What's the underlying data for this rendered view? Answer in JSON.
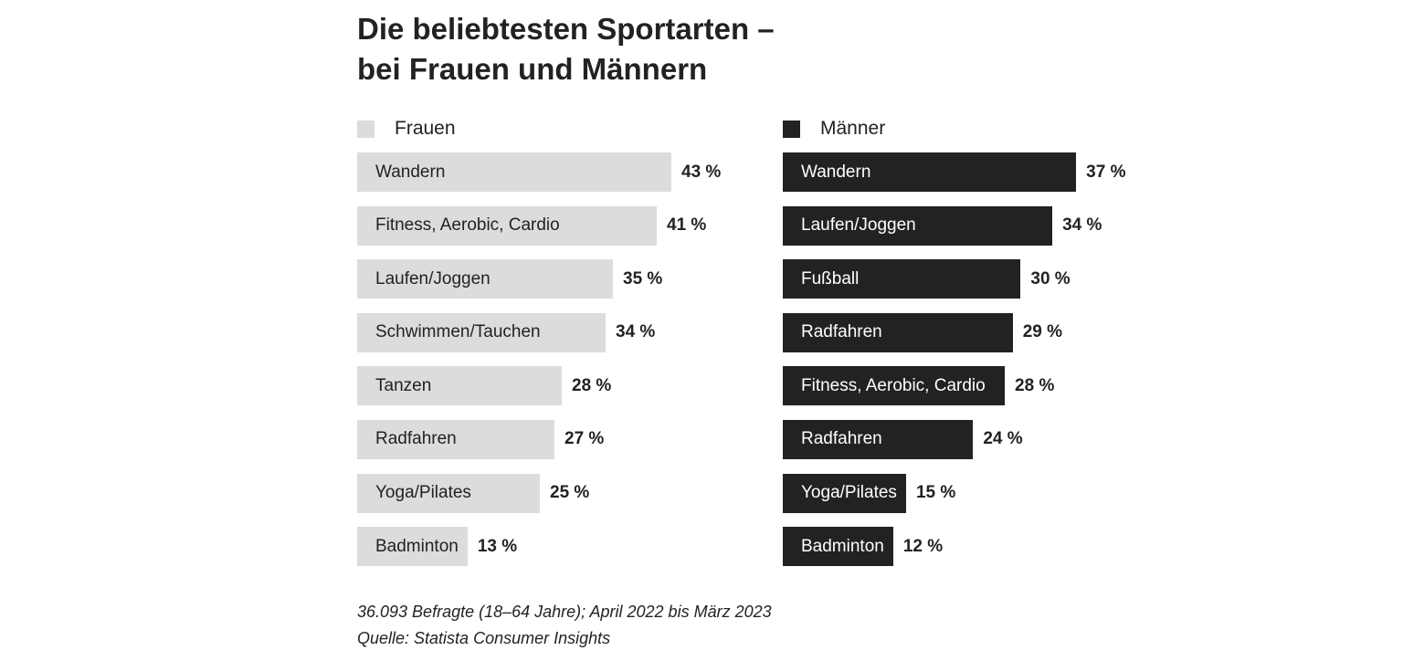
{
  "chart_data": {
    "type": "bar",
    "title": "Die beliebtesten Sportarten –",
    "subtitle": "bei Frauen und Männern",
    "unit": "%",
    "series": [
      {
        "name": "Frauen",
        "color": "#dcdcdc",
        "text_color": "#222222",
        "categories": [
          "Wandern",
          "Fitness, Aerobic, Cardio",
          "Laufen/Joggen",
          "Schwimmen/Tauchen",
          "Tanzen",
          "Radfahren",
          "Yoga/Pilates",
          "Badminton"
        ],
        "values": [
          43,
          41,
          35,
          34,
          28,
          27,
          25,
          13
        ],
        "labels": [
          "43 %",
          "41 %",
          "35 %",
          "34 %",
          "28 %",
          "27 %",
          "25 %",
          "13 %"
        ]
      },
      {
        "name": "Männer",
        "color": "#222222",
        "text_color": "#ffffff",
        "categories": [
          "Wandern",
          "Laufen/Joggen",
          "Fußball",
          "Radfahren",
          "Fitness, Aerobic, Cardio",
          "Radfahren",
          "Yoga/Pilates",
          "Badminton"
        ],
        "values": [
          37,
          34,
          30,
          29,
          28,
          24,
          15,
          12
        ],
        "labels": [
          "37 %",
          "34 %",
          "30 %",
          "29 %",
          "28 %",
          "24 %",
          "15 %",
          "12 %"
        ]
      }
    ],
    "footnote": "36.093 Befragte (18–64 Jahre); April 2022 bis März 2023",
    "source": "Quelle: Statista Consumer Insights"
  }
}
